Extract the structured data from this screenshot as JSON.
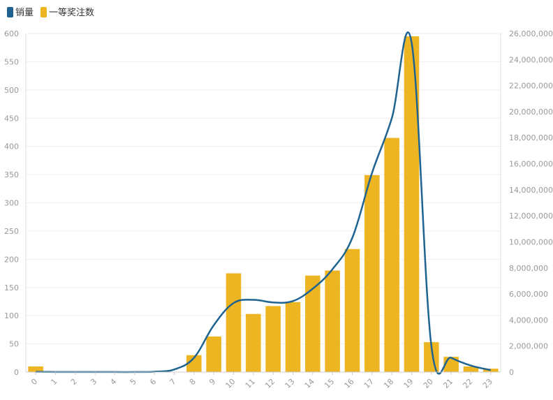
{
  "chart_data": {
    "type": "bar",
    "x": [
      "0",
      "1",
      "2",
      "3",
      "4",
      "5",
      "6",
      "7",
      "8",
      "9",
      "10",
      "11",
      "12",
      "13",
      "14",
      "15",
      "16",
      "17",
      "18",
      "19",
      "20",
      "21",
      "22",
      "23"
    ],
    "series": [
      {
        "name": "销量",
        "type": "line",
        "axis": "right",
        "color": "#1f6391",
        "values": [
          20000,
          10000,
          5000,
          5000,
          5000,
          5000,
          30000,
          200000,
          1100000,
          3600000,
          5300000,
          5550000,
          5350000,
          5450000,
          6400000,
          7900000,
          10300000,
          15300000,
          19500000,
          25300000,
          2000000,
          1100000,
          500000,
          150000
        ]
      },
      {
        "name": "一等奖注数",
        "type": "bar",
        "axis": "left",
        "color": "#eeb522",
        "values": [
          10,
          0,
          0,
          0,
          0,
          0,
          0,
          0,
          30,
          63,
          175,
          103,
          117,
          124,
          171,
          180,
          218,
          349,
          415,
          595,
          53,
          27,
          10,
          6
        ]
      }
    ],
    "y_left": {
      "min": 0,
      "max": 600,
      "ticks": [
        "0",
        "50",
        "100",
        "150",
        "200",
        "250",
        "300",
        "350",
        "400",
        "450",
        "500",
        "550",
        "600"
      ]
    },
    "y_right": {
      "min": 0,
      "max": 26000000,
      "ticks": [
        "0",
        "2,000,000",
        "4,000,000",
        "6,000,000",
        "8,000,000",
        "10,000,000",
        "12,000,000",
        "14,000,000",
        "16,000,000",
        "18,000,000",
        "20,000,000",
        "22,000,000",
        "24,000,000",
        "26,000,000"
      ]
    },
    "legend_position": "top-left",
    "grid": true
  }
}
